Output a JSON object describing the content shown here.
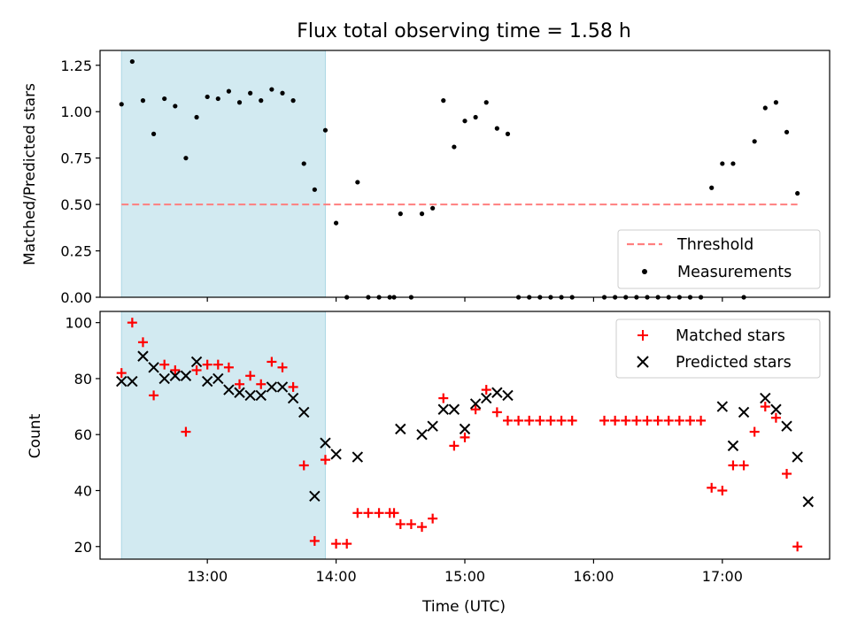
{
  "colors": {
    "shade": "#add8e6",
    "threshold": "#ff7f7f",
    "matched": "#ff0000",
    "predicted": "#000000",
    "measurement": "#000000",
    "axis": "#000000"
  },
  "chart_data": [
    {
      "type": "scatter",
      "title": "Flux total observing time = 1.58 h",
      "xlabel": "",
      "ylabel": "Matched/Predicted stars",
      "xlim": [
        "12:10",
        "17:50"
      ],
      "ylim": [
        0,
        1.33
      ],
      "yticks": [
        0.0,
        0.25,
        0.5,
        0.75,
        1.0,
        1.25
      ],
      "ytick_labels": [
        "0.00",
        "0.25",
        "0.50",
        "0.75",
        "1.00",
        "1.25"
      ],
      "shaded_span": [
        "12:20",
        "13:55"
      ],
      "threshold": {
        "name": "Threshold",
        "y": 0.5,
        "x_range": [
          "12:20",
          "17:35"
        ],
        "style": "dashed"
      },
      "legend": {
        "position": "lower-right",
        "entries": [
          "Threshold",
          "Measurements"
        ]
      },
      "series": [
        {
          "name": "Measurements",
          "marker": "dot",
          "x": [
            "12:20",
            "12:25",
            "12:30",
            "12:35",
            "12:40",
            "12:45",
            "12:50",
            "12:55",
            "13:00",
            "13:05",
            "13:10",
            "13:15",
            "13:20",
            "13:25",
            "13:30",
            "13:35",
            "13:40",
            "13:45",
            "13:50",
            "13:55",
            "14:00",
            "14:05",
            "14:10",
            "14:15",
            "14:20",
            "14:25",
            "14:27",
            "14:30",
            "14:35",
            "14:40",
            "14:45",
            "14:50",
            "14:55",
            "15:00",
            "15:05",
            "15:10",
            "15:15",
            "15:20",
            "15:25",
            "15:30",
            "15:35",
            "15:40",
            "15:45",
            "15:50",
            "16:05",
            "16:10",
            "16:15",
            "16:20",
            "16:25",
            "16:30",
            "16:35",
            "16:40",
            "16:45",
            "16:50",
            "16:55",
            "17:00",
            "17:05",
            "17:10",
            "17:15",
            "17:20",
            "17:25",
            "17:30",
            "17:35"
          ],
          "y": [
            1.04,
            1.27,
            1.06,
            0.88,
            1.07,
            1.03,
            0.75,
            0.97,
            1.08,
            1.07,
            1.11,
            1.05,
            1.1,
            1.06,
            1.12,
            1.1,
            1.06,
            0.72,
            0.58,
            0.9,
            0.4,
            0.0,
            0.62,
            0.0,
            0.0,
            0.0,
            0.0,
            0.45,
            0.0,
            0.45,
            0.48,
            1.06,
            0.81,
            0.95,
            0.97,
            1.05,
            0.91,
            0.88,
            0.0,
            0.0,
            0.0,
            0.0,
            0.0,
            0.0,
            0.0,
            0.0,
            0.0,
            0.0,
            0.0,
            0.0,
            0.0,
            0.0,
            0.0,
            0.0,
            0.59,
            0.72,
            0.72,
            0.0,
            0.84,
            1.02,
            1.05,
            0.89,
            0.56
          ]
        }
      ]
    },
    {
      "type": "scatter",
      "title": "",
      "xlabel": "Time (UTC)",
      "ylabel": "Count",
      "xlim": [
        "12:10",
        "17:50"
      ],
      "ylim": [
        15.5,
        104
      ],
      "xticks": [
        "13:00",
        "14:00",
        "15:00",
        "16:00",
        "17:00"
      ],
      "yticks": [
        20,
        40,
        60,
        80,
        100
      ],
      "ytick_labels": [
        "20",
        "40",
        "60",
        "80",
        "100"
      ],
      "shaded_span": [
        "12:20",
        "13:55"
      ],
      "legend": {
        "position": "top-right",
        "entries": [
          "Matched stars",
          "Predicted stars"
        ]
      },
      "series": [
        {
          "name": "Matched stars",
          "marker": "plus",
          "x": [
            "12:20",
            "12:25",
            "12:30",
            "12:35",
            "12:40",
            "12:45",
            "12:50",
            "12:55",
            "13:00",
            "13:05",
            "13:10",
            "13:15",
            "13:20",
            "13:25",
            "13:30",
            "13:35",
            "13:40",
            "13:45",
            "13:50",
            "13:55",
            "14:00",
            "14:05",
            "14:10",
            "14:15",
            "14:20",
            "14:25",
            "14:27",
            "14:30",
            "14:35",
            "14:40",
            "14:45",
            "14:50",
            "14:55",
            "15:00",
            "15:05",
            "15:10",
            "15:15",
            "15:20",
            "15:25",
            "15:30",
            "15:35",
            "15:40",
            "15:45",
            "15:50",
            "16:05",
            "16:10",
            "16:15",
            "16:20",
            "16:25",
            "16:30",
            "16:35",
            "16:40",
            "16:45",
            "16:50",
            "16:55",
            "17:00",
            "17:05",
            "17:10",
            "17:15",
            "17:20",
            "17:25",
            "17:30",
            "17:35"
          ],
          "y": [
            82,
            100,
            93,
            74,
            85,
            83,
            61,
            83,
            85,
            85,
            84,
            78,
            81,
            78,
            86,
            84,
            77,
            49,
            22,
            51,
            21,
            21,
            32,
            32,
            32,
            32,
            32,
            28,
            28,
            27,
            30,
            73,
            56,
            59,
            69,
            76,
            68,
            65,
            65,
            65,
            65,
            65,
            65,
            65,
            65,
            65,
            65,
            65,
            65,
            65,
            65,
            65,
            65,
            65,
            41,
            40,
            49,
            49,
            61,
            70,
            66,
            46,
            20
          ]
        },
        {
          "name": "Predicted stars",
          "marker": "x",
          "x": [
            "12:20",
            "12:25",
            "12:30",
            "12:35",
            "12:40",
            "12:45",
            "12:50",
            "12:55",
            "13:00",
            "13:05",
            "13:10",
            "13:15",
            "13:20",
            "13:25",
            "13:30",
            "13:35",
            "13:40",
            "13:45",
            "13:50",
            "13:55",
            "14:00",
            "14:10",
            "14:30",
            "14:40",
            "14:45",
            "14:50",
            "14:55",
            "15:00",
            "15:05",
            "15:10",
            "15:15",
            "15:20",
            "17:00",
            "17:05",
            "17:10",
            "17:20",
            "17:25",
            "17:30",
            "17:35",
            "17:40"
          ],
          "y": [
            79,
            79,
            88,
            84,
            80,
            81,
            81,
            86,
            79,
            80,
            76,
            75,
            74,
            74,
            77,
            77,
            73,
            68,
            38,
            57,
            53,
            52,
            62,
            60,
            63,
            69,
            69,
            62,
            71,
            73,
            75,
            74,
            70,
            56,
            68,
            73,
            69,
            63,
            52,
            36
          ]
        }
      ]
    }
  ]
}
